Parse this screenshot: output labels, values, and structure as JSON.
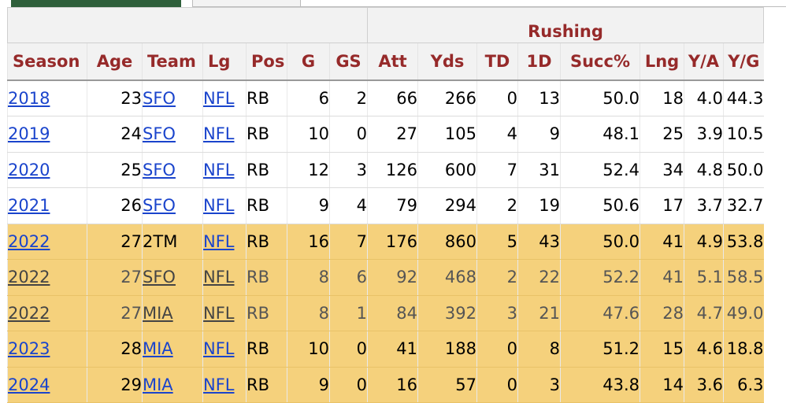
{
  "group_header": "Rushing",
  "columns": [
    "Season",
    "Age",
    "Team",
    "Lg",
    "Pos",
    "G",
    "GS",
    "Att",
    "Yds",
    "TD",
    "1D",
    "Succ%",
    "Lng",
    "Y/A",
    "Y/G"
  ],
  "rows": [
    {
      "season": "2018",
      "age": "23",
      "team": "SFO",
      "team_link": true,
      "lg": "NFL",
      "pos": "RB",
      "g": "6",
      "gs": "2",
      "att": "66",
      "yds": "266",
      "td": "0",
      "fd": "13",
      "succ": "50.0",
      "lng": "18",
      "ya": "4.0",
      "yg": "44.3",
      "highlight": false,
      "partial": false
    },
    {
      "season": "2019",
      "age": "24",
      "team": "SFO",
      "team_link": true,
      "lg": "NFL",
      "pos": "RB",
      "g": "10",
      "gs": "0",
      "att": "27",
      "yds": "105",
      "td": "4",
      "fd": "9",
      "succ": "48.1",
      "lng": "25",
      "ya": "3.9",
      "yg": "10.5",
      "highlight": false,
      "partial": false
    },
    {
      "season": "2020",
      "age": "25",
      "team": "SFO",
      "team_link": true,
      "lg": "NFL",
      "pos": "RB",
      "g": "12",
      "gs": "3",
      "att": "126",
      "yds": "600",
      "td": "7",
      "fd": "31",
      "succ": "52.4",
      "lng": "34",
      "ya": "4.8",
      "yg": "50.0",
      "highlight": false,
      "partial": false
    },
    {
      "season": "2021",
      "age": "26",
      "team": "SFO",
      "team_link": true,
      "lg": "NFL",
      "pos": "RB",
      "g": "9",
      "gs": "4",
      "att": "79",
      "yds": "294",
      "td": "2",
      "fd": "19",
      "succ": "50.6",
      "lng": "17",
      "ya": "3.7",
      "yg": "32.7",
      "highlight": false,
      "partial": false
    },
    {
      "season": "2022",
      "age": "27",
      "team": "2TM",
      "team_link": false,
      "lg": "NFL",
      "pos": "RB",
      "g": "16",
      "gs": "7",
      "att": "176",
      "yds": "860",
      "td": "5",
      "fd": "43",
      "succ": "50.0",
      "lng": "41",
      "ya": "4.9",
      "yg": "53.8",
      "highlight": true,
      "partial": false
    },
    {
      "season": "2022",
      "age": "27",
      "team": "SFO",
      "team_link": true,
      "lg": "NFL",
      "pos": "RB",
      "g": "8",
      "gs": "6",
      "att": "92",
      "yds": "468",
      "td": "2",
      "fd": "22",
      "succ": "52.2",
      "lng": "41",
      "ya": "5.1",
      "yg": "58.5",
      "highlight": true,
      "partial": true
    },
    {
      "season": "2022",
      "age": "27",
      "team": "MIA",
      "team_link": true,
      "lg": "NFL",
      "pos": "RB",
      "g": "8",
      "gs": "1",
      "att": "84",
      "yds": "392",
      "td": "3",
      "fd": "21",
      "succ": "47.6",
      "lng": "28",
      "ya": "4.7",
      "yg": "49.0",
      "highlight": true,
      "partial": true
    },
    {
      "season": "2023",
      "age": "28",
      "team": "MIA",
      "team_link": true,
      "lg": "NFL",
      "pos": "RB",
      "g": "10",
      "gs": "0",
      "att": "41",
      "yds": "188",
      "td": "0",
      "fd": "8",
      "succ": "51.2",
      "lng": "15",
      "ya": "4.6",
      "yg": "18.8",
      "highlight": true,
      "partial": false
    },
    {
      "season": "2024",
      "age": "29",
      "team": "MIA",
      "team_link": true,
      "lg": "NFL",
      "pos": "RB",
      "g": "9",
      "gs": "0",
      "att": "16",
      "yds": "57",
      "td": "0",
      "fd": "3",
      "succ": "43.8",
      "lng": "14",
      "ya": "3.6",
      "yg": "6.3",
      "highlight": true,
      "partial": false
    }
  ],
  "colors": {
    "header_text": "#962a2a",
    "highlight_row": "#f5d17c",
    "link": "#1a44cc",
    "active_tab": "#2e5f3a"
  }
}
